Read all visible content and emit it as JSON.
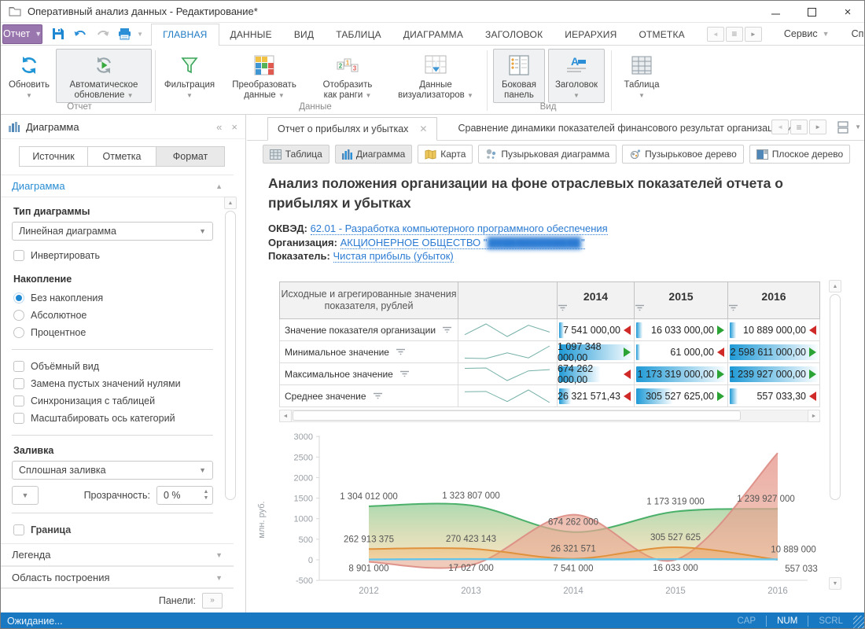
{
  "window": {
    "title": "Оперативный анализ данных - Редактирование*"
  },
  "menubar": {
    "report_button": "Отчет",
    "tabs": [
      "ГЛАВНАЯ",
      "ДАННЫЕ",
      "ВИД",
      "ТАБЛИЦА",
      "ДИАГРАММА",
      "ЗАГОЛОВОК",
      "ИЕРАРХИЯ",
      "ОТМЕТКА"
    ],
    "active_tab": "ГЛАВНАЯ",
    "service": "Сервис",
    "help": "Справка"
  },
  "ribbon": {
    "refresh": "Обновить",
    "auto_refresh": "Автоматическое обновление",
    "filter": "Фильтрация",
    "transform": "Преобразовать данные",
    "ranks": "Отобразить как ранги",
    "visualizers": "Данные визуализаторов",
    "side_panel": "Боковая панель",
    "header": "Заголовок",
    "table": "Таблица",
    "group_report": "Отчет",
    "group_data": "Данные",
    "group_view": "Вид"
  },
  "sidebar": {
    "title": "Диаграмма",
    "tabs": [
      "Источник",
      "Отметка",
      "Формат"
    ],
    "active_tab": "Формат",
    "section": "Диаграмма",
    "items": [
      {
        "type": "label",
        "text": "Тип диаграммы"
      },
      {
        "type": "select",
        "value": "Линейная диаграмма"
      },
      {
        "type": "checkbox",
        "label": "Инвертировать",
        "checked": false
      },
      {
        "type": "label",
        "text": "Накопление"
      },
      {
        "type": "radio",
        "label": "Без накопления",
        "selected": true
      },
      {
        "type": "radio",
        "label": "Абсолютное",
        "selected": false
      },
      {
        "type": "radio",
        "label": "Процентное",
        "selected": false
      },
      {
        "type": "divider"
      },
      {
        "type": "checkbox",
        "label": "Объёмный вид",
        "checked": false
      },
      {
        "type": "checkbox",
        "label": "Замена пустых значений нулями",
        "checked": false
      },
      {
        "type": "checkbox",
        "label": "Синхронизация с таблицей",
        "checked": false
      },
      {
        "type": "checkbox",
        "label": "Масштабировать ось категорий",
        "checked": false
      },
      {
        "type": "divider"
      },
      {
        "type": "label",
        "text": "Заливка"
      },
      {
        "type": "select",
        "value": "Сплошная заливка"
      },
      {
        "type": "transparency",
        "label": "Прозрачность:",
        "value": "0 %"
      },
      {
        "type": "divider"
      },
      {
        "type": "checkbox",
        "label": "Граница",
        "checked": false,
        "bold": true
      }
    ],
    "collapsed_sections": [
      "Легенда",
      "Область построения"
    ],
    "panels_label": "Панели:"
  },
  "main": {
    "doc_tabs": [
      {
        "label": "Отчет о прибылях и убытках",
        "active": true
      },
      {
        "label": "Сравнение динамики показателей финансового результат организации и",
        "active": false
      }
    ],
    "view_buttons": [
      "Таблица",
      "Диаграмма",
      "Карта",
      "Пузырьковая диаграмма",
      "Пузырьковое дерево",
      "Плоское дерево"
    ],
    "view_pressed": [
      "Таблица",
      "Диаграмма"
    ],
    "heading": "Анализ положения организации на фоне отраслевых показателей отчета о прибылях и убытках",
    "meta": {
      "okved_label": "ОКВЭД:",
      "okved_link": "62.01 - Разработка компьютерного программного обеспечения",
      "org_label": "Организация:",
      "org_link_prefix": "АКЦИОНЕРНОЕ ОБЩЕСТВО \"",
      "org_redacted": "█████████████",
      "org_link_suffix": "\"",
      "indicator_label": "Показатель:",
      "indicator_link": "Чистая прибыль (убыток)"
    },
    "table": {
      "corner_header": "Исходные и агрегированные значения показателя, рублей",
      "year_columns": [
        "2014",
        "2015",
        "2016"
      ],
      "rows": [
        {
          "label": "Значение показателя организации",
          "spark": [
            8.901,
            17.027,
            7.541,
            16.033,
            10.889
          ],
          "cells": [
            {
              "value": "7 541 000,00",
              "trend": "down",
              "bar": 0.1
            },
            {
              "value": "16 033 000,00",
              "trend": "up",
              "bar": 0.1
            },
            {
              "value": "10 889 000,00",
              "trend": "down",
              "bar": 0.1
            }
          ]
        },
        {
          "label": "Минимальное значение",
          "spark": [
            -50,
            -130,
            1097.348,
            0.061,
            2598.611
          ],
          "cells": [
            {
              "value": "1 097 348 000,00",
              "trend": "up",
              "bar": 1.0
            },
            {
              "value": "61 000,00",
              "trend": "down",
              "bar": 0.08
            },
            {
              "value": "2 598 611 000,00",
              "trend": "up",
              "bar": 1.0
            }
          ]
        },
        {
          "label": "Максимальное значение",
          "spark": [
            1304.012,
            1323.807,
            674.262,
            1173.319,
            1239.927
          ],
          "cells": [
            {
              "value": "674 262 000,00",
              "trend": "down",
              "bar": 0.58
            },
            {
              "value": "1 173 319 000,00",
              "trend": "up",
              "bar": 1.0
            },
            {
              "value": "1 239 927 000,00",
              "trend": "up",
              "bar": 1.0
            }
          ]
        },
        {
          "label": "Среднее значение",
          "spark": [
            262.913,
            270.423,
            26.322,
            305.528,
            0.557
          ],
          "cells": [
            {
              "value": "26 321 571,43",
              "trend": "down",
              "bar": 0.2
            },
            {
              "value": "305 527 625,00",
              "trend": "up",
              "bar": 0.42
            },
            {
              "value": "557 033,30",
              "trend": "down",
              "bar": 0.12
            }
          ]
        }
      ]
    }
  },
  "chart_data": {
    "type": "area",
    "categories": [
      "2012",
      "2013",
      "2014",
      "2015",
      "2016"
    ],
    "ylabel": "млн. руб.",
    "ylim": [
      -500,
      3000
    ],
    "yticks": [
      3000,
      2500,
      2000,
      1500,
      1000,
      500,
      0,
      -500
    ],
    "grid": false,
    "legend": "none",
    "series": [
      {
        "name": "Максимальное значение",
        "kind": "area",
        "stroke": "#4bb06a",
        "fill_top": "rgba(130,198,135,0.65)",
        "fill_bottom": "rgba(233,194,120,0.45)",
        "values_mln": [
          1304.012,
          1323.807,
          674.262,
          1173.319,
          1239.927
        ],
        "labels": [
          "1 304 012 000",
          "1 323 807 000",
          "674 262 000",
          "1 173 319 000",
          "1 239 927 000"
        ],
        "label_side": [
          "up",
          "up",
          "up",
          "up",
          "up"
        ],
        "label_dx": [
          0,
          0,
          0,
          0,
          -15
        ]
      },
      {
        "name": "Минимальное значение",
        "kind": "area",
        "stroke": "rgba(219,140,132,0.9)",
        "fill_top": "rgba(230,150,142,0.78)",
        "fill_bottom": "rgba(233,176,150,0.65)",
        "values_mln": [
          -50,
          -130,
          1097.348,
          0.061,
          2598.611
        ],
        "labels": [
          "",
          "",
          "",
          "",
          ""
        ],
        "label_side": [
          "up",
          "up",
          "up",
          "up",
          "up"
        ],
        "label_dx": [
          0,
          0,
          0,
          0,
          0
        ],
        "note": "2012-2013 values estimated from pixels; labels not shown on chart"
      },
      {
        "name": "Среднее значение",
        "kind": "area",
        "stroke": "#e0913c",
        "fill_top": "rgba(235,170,90,0.40)",
        "fill_bottom": "rgba(235,170,90,0.30)",
        "values_mln": [
          262.913,
          270.423,
          26.322,
          305.528,
          0.557
        ],
        "labels": [
          "262 913 375",
          "270 423 143",
          "26 321 571",
          "305 527 625",
          "557 033"
        ],
        "label_side": [
          "up",
          "up",
          "up",
          "up",
          "down"
        ],
        "label_dx": [
          0,
          0,
          0,
          0,
          30
        ]
      },
      {
        "name": "Значение показателя организации",
        "kind": "line",
        "stroke": "#66c5e9",
        "values_mln": [
          8.901,
          17.027,
          7.541,
          16.033,
          10.889
        ],
        "labels": [
          "8 901 000",
          "17 027 000",
          "7 541 000",
          "16 033 000",
          "10 889 000"
        ],
        "label_side": [
          "down",
          "down",
          "down",
          "down",
          "up"
        ],
        "label_dx": [
          0,
          0,
          0,
          0,
          20
        ]
      }
    ]
  },
  "statusbar": {
    "message": "Ожидание...",
    "locks": [
      {
        "label": "CAP",
        "active": false
      },
      {
        "label": "NUM",
        "active": true
      },
      {
        "label": "SCRL",
        "active": false
      }
    ]
  }
}
